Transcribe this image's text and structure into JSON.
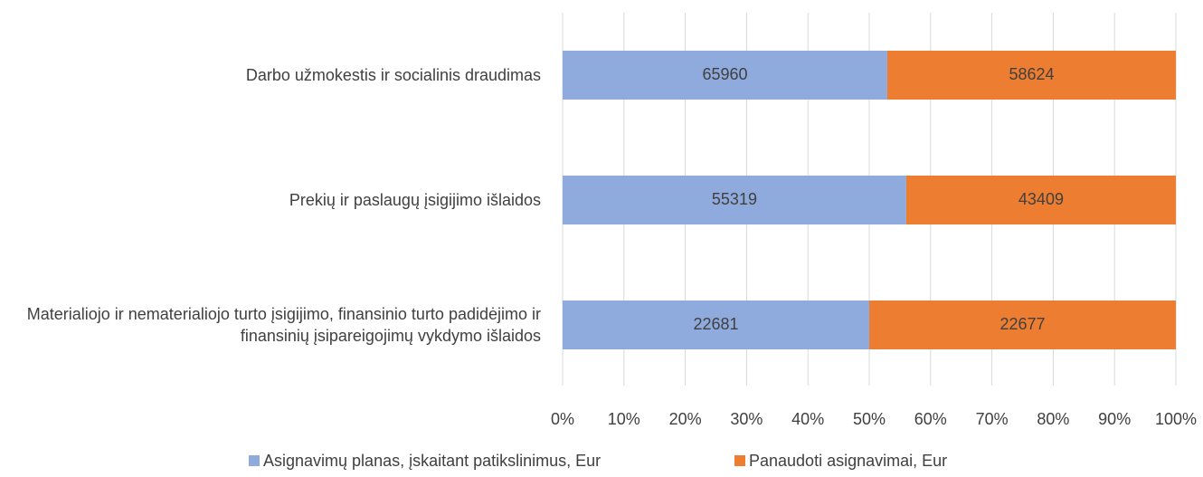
{
  "chart_data": {
    "type": "stacked_percent_bar_horizontal",
    "categories": [
      "Darbo užmokestis ir socialinis draudimas",
      "Prekių ir paslaugų įsigijimo išlaidos",
      "Materialiojo ir nematerialiojo turto įsigijimo, finansinio turto padidėjimo ir finansinių įsipareigojimų vykdymo išlaidos"
    ],
    "series": [
      {
        "name": "Asignavimų planas, įskaitant patikslinimus, Eur",
        "color": "#8faadc",
        "values": [
          65960,
          55319,
          22681
        ]
      },
      {
        "name": "Panaudoti asignavimai, Eur",
        "color": "#ed7d31",
        "values": [
          58624,
          43409,
          22677
        ]
      }
    ],
    "xlim": [
      0,
      100
    ],
    "xticks": [
      {
        "value": 0,
        "label": "0%"
      },
      {
        "value": 10,
        "label": "10%"
      },
      {
        "value": 20,
        "label": "20%"
      },
      {
        "value": 30,
        "label": "30%"
      },
      {
        "value": 40,
        "label": "40%"
      },
      {
        "value": 50,
        "label": "50%"
      },
      {
        "value": 60,
        "label": "60%"
      },
      {
        "value": 70,
        "label": "70%"
      },
      {
        "value": 80,
        "label": "80%"
      },
      {
        "value": 90,
        "label": "90%"
      },
      {
        "value": 100,
        "label": "100%"
      }
    ],
    "grid": true,
    "legend": "bottom"
  }
}
